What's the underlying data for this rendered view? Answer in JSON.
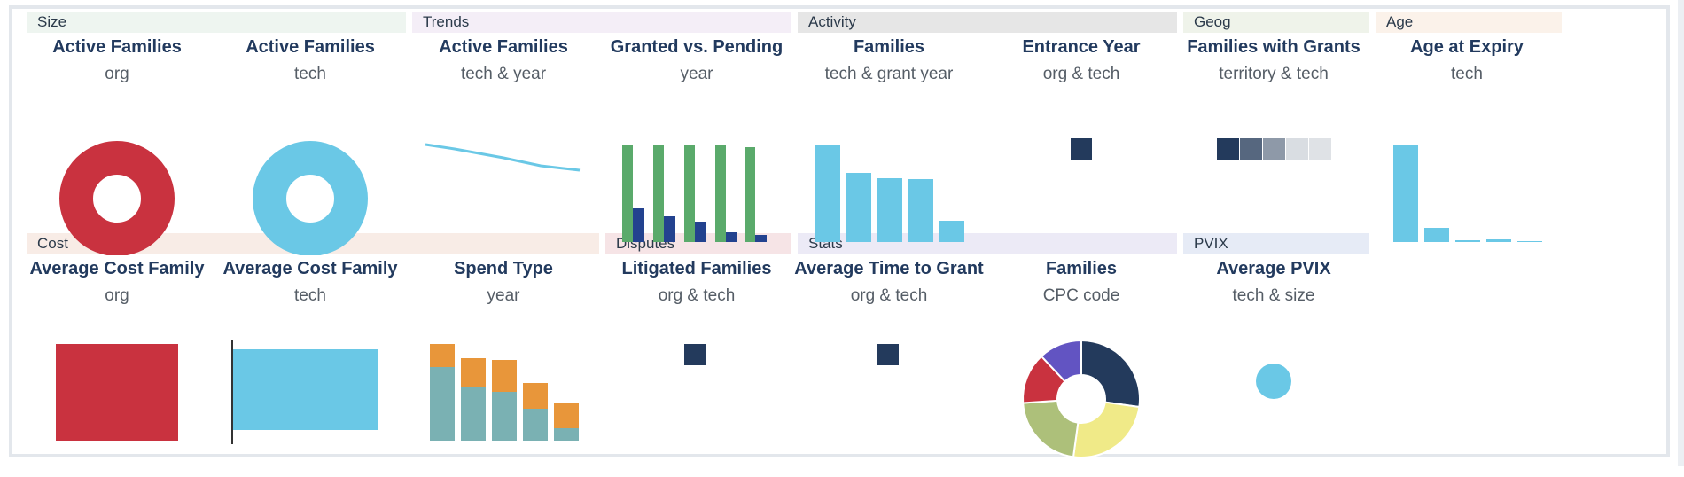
{
  "colors": {
    "red": "#c9323f",
    "light_blue": "#6ac8e6",
    "green": "#5aaa6b",
    "dark_blue": "#23428f",
    "navy": "#233a5c",
    "teal": "#7ab1b3",
    "orange": "#e8963a",
    "yellow": "#f0ea88",
    "olive": "#adc07a",
    "purple": "#6254c2"
  },
  "sections": {
    "size": "Size",
    "trends": "Trends",
    "activity": "Activity",
    "geog": "Geog",
    "age": "Age",
    "cost": "Cost",
    "disputes": "Disputes",
    "stats": "Stats",
    "pvix": "PVIX"
  },
  "tiles": {
    "active_families_org": {
      "title": "Active Families",
      "subtitle": "org"
    },
    "active_families_tech": {
      "title": "Active Families",
      "subtitle": "tech"
    },
    "active_families_tech_year": {
      "title": "Active Families",
      "subtitle": "tech & year"
    },
    "granted_vs_pending": {
      "title": "Granted vs. Pending",
      "subtitle": "year"
    },
    "families_tech_grant_year": {
      "title": "Families",
      "subtitle": "tech & grant year"
    },
    "entrance_year": {
      "title": "Entrance Year",
      "subtitle": "org & tech"
    },
    "families_with_grants": {
      "title": "Families with Grants",
      "subtitle": "territory & tech"
    },
    "age_at_expiry": {
      "title": "Age at Expiry",
      "subtitle": "tech"
    },
    "avg_cost_org": {
      "title": "Average Cost Family",
      "subtitle": "org"
    },
    "avg_cost_tech": {
      "title": "Average Cost Family",
      "subtitle": "tech"
    },
    "spend_type": {
      "title": "Spend Type",
      "subtitle": "year"
    },
    "litigated_families": {
      "title": "Litigated Families",
      "subtitle": "org & tech"
    },
    "avg_time_to_grant": {
      "title": "Average Time to Grant",
      "subtitle": "org & tech"
    },
    "families_cpc": {
      "title": "Families",
      "subtitle": "CPC code"
    },
    "average_pvix": {
      "title": "Average PVIX",
      "subtitle": "tech & size"
    }
  },
  "chart_data": [
    {
      "id": "active_families_org",
      "type": "pie",
      "hole": true,
      "values": [
        1
      ]
    },
    {
      "id": "active_families_tech",
      "type": "pie",
      "hole": true,
      "values": [
        1
      ]
    },
    {
      "id": "active_families_tech_year",
      "type": "line",
      "y": [
        10,
        8.2,
        6.4,
        3.5,
        2.2
      ]
    },
    {
      "id": "granted_vs_pending",
      "type": "bar",
      "series": [
        {
          "name": "granted",
          "values": [
            100,
            100,
            100,
            100,
            98
          ]
        },
        {
          "name": "pending",
          "values": [
            35,
            27,
            21,
            10,
            7
          ]
        }
      ]
    },
    {
      "id": "families_tech_grant_year",
      "type": "bar",
      "values": [
        10,
        7.2,
        6.6,
        6.5,
        2.2
      ]
    },
    {
      "id": "entrance_year",
      "type": "heatmap",
      "values": [
        1
      ]
    },
    {
      "id": "families_with_grants",
      "type": "heatmap",
      "values": [
        5,
        4,
        3,
        1,
        1
      ]
    },
    {
      "id": "age_at_expiry",
      "type": "bar",
      "values": [
        10,
        1.5,
        0.2,
        0.3,
        0.1
      ]
    },
    {
      "id": "avg_cost_org",
      "type": "bar",
      "values": [
        1
      ]
    },
    {
      "id": "avg_cost_tech",
      "type": "bar",
      "values": [
        1
      ]
    },
    {
      "id": "spend_type",
      "type": "bar",
      "stacked": true,
      "series": [
        {
          "name": "base",
          "values": [
            76,
            55,
            50,
            33,
            13
          ]
        },
        {
          "name": "top",
          "values": [
            24,
            30,
            33,
            27,
            27
          ]
        }
      ]
    },
    {
      "id": "litigated_families",
      "type": "heatmap",
      "values": [
        1
      ]
    },
    {
      "id": "avg_time_to_grant",
      "type": "heatmap",
      "values": [
        1
      ]
    },
    {
      "id": "families_cpc",
      "type": "pie",
      "hole": true,
      "values": [
        25,
        23,
        20,
        13,
        11
      ]
    },
    {
      "id": "average_pvix",
      "type": "scatter",
      "values": [
        1
      ]
    }
  ]
}
